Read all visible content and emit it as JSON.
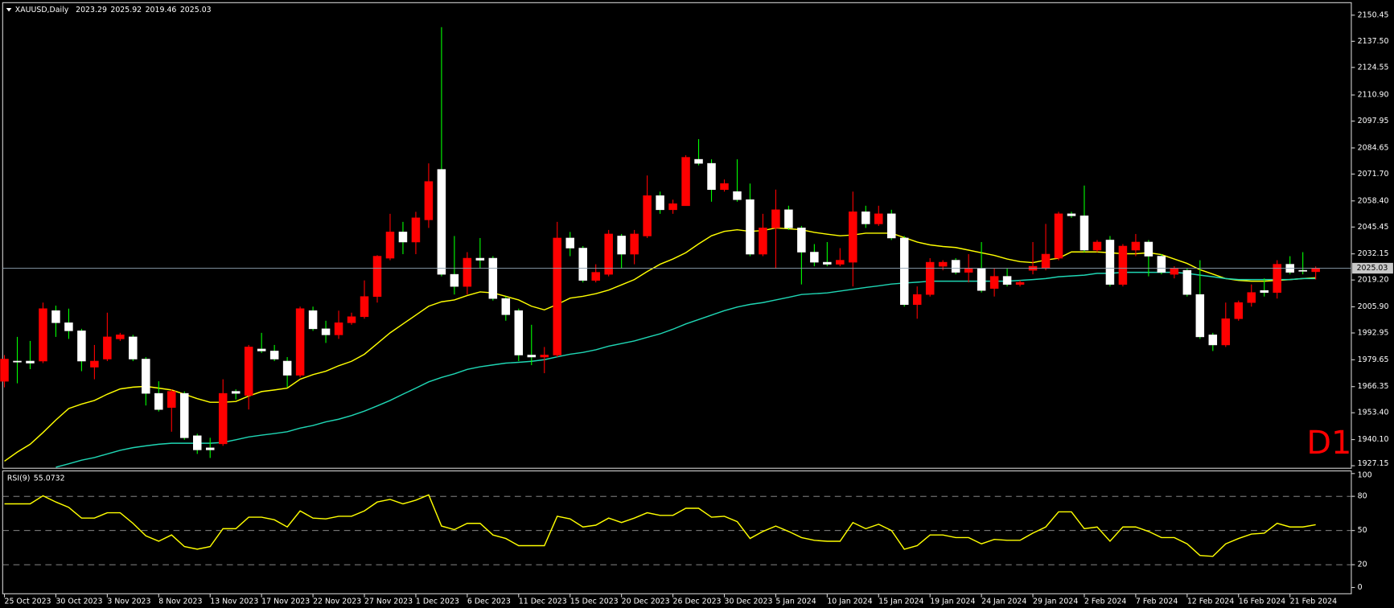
{
  "chart_data": [
    {
      "type": "candlestick",
      "title": "XAUUSD,Daily",
      "categories": [
        "25 Oct 2023",
        null,
        null,
        null,
        "30 Oct 2023",
        null,
        null,
        null,
        "3 Nov 2023",
        null,
        null,
        null,
        "8 Nov 2023",
        null,
        null,
        null,
        "13 Nov 2023",
        null,
        null,
        null,
        "17 Nov 2023",
        null,
        null,
        null,
        "22 Nov 2023",
        null,
        null,
        null,
        "27 Nov 2023",
        null,
        null,
        null,
        "1 Dec 2023",
        null,
        null,
        null,
        "6 Dec 2023",
        null,
        null,
        null,
        "11 Dec 2023",
        null,
        null,
        null,
        "15 Dec 2023",
        null,
        null,
        null,
        "20 Dec 2023",
        null,
        null,
        null,
        "26 Dec 2023",
        null,
        null,
        null,
        "30 Dec 2023",
        null,
        null,
        null,
        "5 Jan 2024",
        null,
        null,
        null,
        "10 Jan 2024",
        null,
        null,
        null,
        "15 Jan 2024",
        null,
        null,
        null,
        "19 Jan 2024",
        null,
        null,
        null,
        "24 Jan 2024",
        null,
        null,
        null,
        "29 Jan 2024",
        null,
        null,
        null,
        "2 Feb 2024",
        null,
        null,
        null,
        "7 Feb 2024",
        null,
        null,
        null,
        "12 Feb 2024",
        null,
        null,
        null,
        "16 Feb 2024",
        null,
        null,
        null,
        "21 Feb 2024",
        null,
        null
      ],
      "open": [
        1969,
        1979,
        1979,
        1979,
        2004,
        1998,
        1994,
        1976,
        1980,
        1990,
        1991,
        1980,
        1963,
        1956,
        1963,
        1942,
        1936,
        1938,
        1964,
        1962,
        1985,
        1984,
        1979,
        1972,
        2004,
        1995,
        1992,
        1998,
        2001,
        2011,
        2030,
        2043,
        2038,
        2049,
        2074,
        2022,
        2016,
        2030,
        2030,
        2010,
        2004,
        1982,
        1981,
        1982,
        2040,
        2035,
        2019,
        2022,
        2041,
        2032,
        2041,
        2061,
        2054,
        2056,
        2079,
        2077,
        2064,
        2063,
        2059,
        2032,
        2045,
        2054,
        2045,
        2033,
        2028,
        2027,
        2028,
        2053,
        2047,
        2052,
        2040,
        2007,
        2012,
        2026,
        2029,
        2023,
        2025,
        2015,
        2021,
        2017,
        2024,
        2025,
        2030,
        2052,
        2051,
        2034,
        2039,
        2017,
        2034,
        2038,
        2031,
        2022,
        2024,
        2012,
        1992,
        1987,
        2000,
        2008,
        2014,
        2013,
        2027,
        2024,
        2023.29
      ],
      "high": [
        1982,
        1991,
        1989,
        2008,
        2006.5,
        2005,
        1995,
        1987,
        2003,
        1993,
        1992,
        1981,
        1969,
        1965,
        1964,
        1943,
        1941,
        1970,
        1965,
        1987,
        1993,
        1987,
        1981,
        2006,
        2006,
        1999,
        2004,
        2003,
        2019,
        2031.5,
        2052,
        2048,
        2053,
        2077,
        2144.5,
        2041,
        2033,
        2040,
        2031,
        2011,
        2005,
        1997,
        1986,
        2048,
        2043,
        2036,
        2027,
        2044,
        2042,
        2044,
        2071,
        2063,
        2059,
        2081,
        2089,
        2079,
        2069,
        2079,
        2067,
        2052,
        2064,
        2056,
        2046,
        2037,
        2038,
        2035,
        2063,
        2056,
        2056,
        2054,
        2041,
        2016,
        2030,
        2029,
        2030,
        2032,
        2038,
        2025,
        2025,
        2019,
        2038,
        2047,
        2053,
        2053,
        2066,
        2039,
        2041,
        2037,
        2042,
        2039,
        2032,
        2026,
        2025,
        2029,
        1993,
        2008,
        2009,
        2017,
        2020,
        2029,
        2031,
        2033,
        2025.92
      ],
      "low": [
        1966,
        1968,
        1975,
        1978,
        1991,
        1990,
        1974,
        1970,
        1979,
        1989,
        1979,
        1957,
        1954,
        1944,
        1940,
        1933,
        1931,
        1937,
        1960,
        1955,
        1983,
        1979,
        1966,
        1971,
        1994,
        1988,
        1990,
        1997,
        2000,
        2008,
        2029,
        2032,
        2032,
        2045,
        2021,
        2012,
        2012,
        2025,
        2009,
        1999,
        1979,
        1977,
        1973,
        1981,
        2031,
        2018,
        2018,
        2021,
        2025,
        2027,
        2040,
        2052,
        2052,
        2056,
        2076,
        2058,
        2063,
        2058,
        2031,
        2031,
        2025,
        2044,
        2017,
        2026,
        2026,
        2026,
        2016,
        2045,
        2046,
        2039,
        2006,
        2000,
        2011,
        2024,
        2022,
        2018,
        2013,
        2011,
        2016,
        2016,
        2022,
        2024,
        2029,
        2050,
        2033,
        2033,
        2016,
        2016,
        2031,
        2021,
        2022,
        2020,
        2011,
        1990,
        1984,
        1986,
        1999,
        2006,
        2011,
        2010,
        2022,
        2022,
        2019.46
      ],
      "close": [
        1980,
        1978.5,
        1978,
        2005,
        1998,
        1994,
        1979,
        1979,
        1991,
        1992,
        1980,
        1963,
        1955,
        1964,
        1941,
        1935,
        1935,
        1963,
        1963,
        1986,
        1984,
        1980,
        1972,
        2005,
        1995,
        1992,
        1998,
        2001,
        2011,
        2031,
        2043,
        2038,
        2050,
        2068,
        2022,
        2016,
        2030,
        2029,
        2010,
        2002,
        1982,
        1981,
        1982,
        2040,
        2035,
        2019,
        2023,
        2042,
        2032,
        2042,
        2061,
        2054,
        2057,
        2080,
        2077,
        2064,
        2067,
        2059,
        2032,
        2045,
        2054,
        2045,
        2033,
        2028,
        2027,
        2029,
        2053,
        2047,
        2052,
        2040,
        2007,
        2012,
        2028,
        2028,
        2023,
        2025,
        2014,
        2021,
        2017,
        2018,
        2026,
        2032,
        2052,
        2051,
        2034,
        2038,
        2017,
        2036,
        2038,
        2031,
        2023,
        2025,
        2012,
        1991,
        1987,
        2000,
        2008,
        2013,
        2013,
        2027,
        2023,
        2023.5,
        2025.03
      ],
      "up_color": "#ff0000",
      "down_color": "#ffffff",
      "down_wick_color": "#00ff00",
      "overlays": [
        {
          "color": "#ffff00",
          "values": [
            1929.4,
            1933.9,
            1937.8,
            1943.6,
            1949.8,
            1955.5,
            1957.7,
            1959.5,
            1962.6,
            1965.2,
            1966.1,
            1966.5,
            1965.6,
            1964.7,
            1962.6,
            1960.4,
            1958.6,
            1958.6,
            1959.0,
            1961.7,
            1963.9,
            1964.7,
            1965.6,
            1970.0,
            1972.3,
            1974.0,
            1976.7,
            1978.9,
            1982.4,
            1987.7,
            1993.0,
            1997.4,
            2001.8,
            2006.2,
            2008.4,
            2009.3,
            2011.5,
            2013.3,
            2012.8,
            2011.1,
            2009.3,
            2006.2,
            2004.4,
            2007.1,
            2010.2,
            2011.1,
            2012.4,
            2014.2,
            2016.8,
            2019.4,
            2023.4,
            2027.0,
            2029.6,
            2032.7,
            2037.1,
            2041.1,
            2043.3,
            2044.1,
            2043.3,
            2043.7,
            2045.0,
            2044.6,
            2044.1,
            2042.8,
            2041.9,
            2041.1,
            2041.5,
            2042.4,
            2042.4,
            2042.4,
            2040.2,
            2038.0,
            2036.6,
            2035.8,
            2035.3,
            2034.0,
            2032.7,
            2031.4,
            2029.6,
            2028.3,
            2027.8,
            2029.1,
            2030.0,
            2033.1,
            2033.1,
            2033.1,
            2032.7,
            2032.2,
            2032.2,
            2032.7,
            2031.8,
            2029.6,
            2027.4,
            2024.3,
            2022.1,
            2019.9,
            2019.0,
            2018.6,
            2018.6,
            2019.0,
            2019.4,
            2019.9,
            2020.3
          ]
        },
        {
          "color": "#1fd6b4",
          "values": [
            null,
            null,
            null,
            null,
            1926.4,
            1928.1,
            1929.9,
            1931.2,
            1933.0,
            1934.8,
            1936.1,
            1937.0,
            1937.8,
            1938.3,
            1938.3,
            1938.3,
            1938.3,
            1938.7,
            1940.0,
            1941.4,
            1942.3,
            1943.1,
            1944.0,
            1945.8,
            1947.1,
            1948.9,
            1950.2,
            1952.0,
            1954.2,
            1956.8,
            1959.5,
            1962.6,
            1965.6,
            1968.7,
            1970.9,
            1972.7,
            1974.9,
            1976.2,
            1977.1,
            1978.0,
            1978.4,
            1978.9,
            1979.7,
            1981.1,
            1982.4,
            1983.3,
            1984.6,
            1986.4,
            1987.7,
            1989.0,
            1990.8,
            1992.5,
            1994.8,
            1997.4,
            1999.6,
            2001.8,
            2004.0,
            2005.8,
            2007.1,
            2008.0,
            2009.3,
            2010.6,
            2012.0,
            2012.4,
            2012.8,
            2013.7,
            2014.6,
            2015.5,
            2016.3,
            2017.2,
            2017.7,
            2018.1,
            2018.6,
            2018.6,
            2018.6,
            2018.6,
            2018.6,
            2018.6,
            2018.6,
            2019.0,
            2019.4,
            2019.9,
            2020.8,
            2021.2,
            2021.6,
            2022.5,
            2022.5,
            2023.0,
            2023.0,
            2023.0,
            2023.0,
            2023.0,
            2022.5,
            2021.6,
            2020.8,
            2019.9,
            2019.4,
            2019.4,
            2019.4,
            2019.4,
            2019.4,
            2019.9,
            2019.9
          ]
        }
      ],
      "ylim": [
        1925.9,
        2156.2
      ],
      "yticks": [
        2150.45,
        {
          "value": 2137.5,
          "label": "2137.50"
        },
        2124.55,
        {
          "value": 2110.9,
          "label": "2110.90"
        },
        2097.95,
        2084.65,
        {
          "value": 2071.7,
          "label": "2071.70"
        },
        {
          "value": 2058.4,
          "label": "2058.40"
        },
        2045.45,
        2032.15,
        {
          "value": 2019.2,
          "label": "2019.20"
        },
        {
          "value": 2005.9,
          "label": "2005.90"
        },
        1992.95,
        1979.65,
        1966.35,
        {
          "value": 1953.4,
          "label": "1953.40"
        },
        {
          "value": 1940.1,
          "label": "1940.10"
        },
        1927.15
      ],
      "annotation": "D1",
      "annotation_color": "#ff0000"
    },
    {
      "type": "line",
      "title": "RSI(9)",
      "series": [
        {
          "color": "#ffff00",
          "values": [
            73.4,
            73.4,
            73.4,
            80.5,
            75.0,
            70.3,
            60.9,
            60.9,
            65.6,
            65.6,
            56.3,
            45.3,
            40.6,
            46.1,
            35.9,
            33.6,
            35.9,
            51.6,
            51.6,
            61.7,
            61.7,
            59.4,
            53.1,
            67.2,
            60.9,
            60.2,
            62.5,
            62.5,
            67.2,
            75.0,
            77.3,
            73.4,
            76.6,
            81.3,
            53.9,
            50.8,
            56.3,
            56.3,
            46.1,
            43.0,
            36.7,
            36.7,
            36.7,
            62.5,
            60.2,
            53.1,
            54.7,
            60.9,
            57.0,
            60.9,
            65.6,
            63.3,
            63.3,
            69.5,
            69.5,
            61.7,
            62.5,
            57.8,
            43.0,
            49.2,
            53.9,
            49.2,
            43.8,
            41.4,
            40.6,
            40.6,
            57.0,
            51.6,
            55.5,
            50.0,
            33.6,
            36.7,
            46.1,
            46.1,
            43.8,
            43.8,
            38.3,
            42.2,
            41.4,
            41.4,
            47.7,
            53.1,
            66.4,
            66.4,
            51.6,
            53.1,
            40.6,
            53.1,
            53.1,
            49.2,
            43.8,
            43.8,
            38.3,
            28.1,
            27.3,
            38.3,
            43.0,
            46.9,
            47.7,
            56.3,
            53.1,
            53.1,
            55.0732
          ]
        }
      ],
      "ylim": [
        -5.5,
        102.3
      ],
      "yticks": [
        0,
        20,
        50,
        80,
        100
      ],
      "levels": [
        20,
        50,
        80
      ]
    }
  ]
}
